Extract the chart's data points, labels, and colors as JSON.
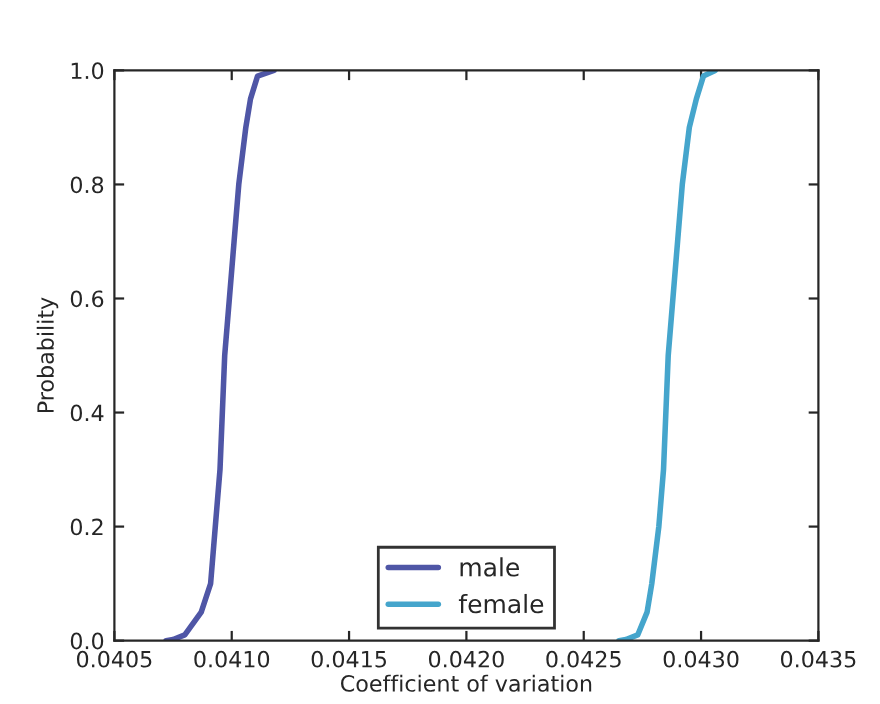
{
  "chart_data": {
    "type": "line",
    "xlabel": "Coefficient of variation",
    "ylabel": "Probability",
    "series": [
      {
        "name": "male",
        "color": "#4f56a6",
        "x": [
          0.04072,
          0.04075,
          0.0408,
          0.04087,
          0.04091,
          0.04093,
          0.04095,
          0.04097,
          0.04101,
          0.04103,
          0.04106,
          0.04108,
          0.04111,
          0.04118
        ],
        "values": [
          0,
          0.002,
          0.01,
          0.05,
          0.1,
          0.2,
          0.3,
          0.5,
          0.7,
          0.8,
          0.9,
          0.95,
          0.99,
          1.0
        ]
      },
      {
        "name": "female",
        "color": "#45a5cc",
        "x": [
          0.04265,
          0.04268,
          0.04273,
          0.04277,
          0.04279,
          0.04282,
          0.04284,
          0.04286,
          0.0429,
          0.04292,
          0.04295,
          0.04298,
          0.04301,
          0.04306
        ],
        "values": [
          0,
          0.002,
          0.01,
          0.05,
          0.1,
          0.2,
          0.3,
          0.5,
          0.7,
          0.8,
          0.9,
          0.95,
          0.99,
          1.0
        ]
      }
    ],
    "xlim": [
      0.0405,
      0.0435
    ],
    "xticks": [
      {
        "value": 0.0405,
        "label": "0.0405"
      },
      {
        "value": 0.041,
        "label": "0.0410"
      },
      {
        "value": 0.0415,
        "label": "0.0415"
      },
      {
        "value": 0.042,
        "label": "0.0420"
      },
      {
        "value": 0.0425,
        "label": "0.0425"
      },
      {
        "value": 0.043,
        "label": "0.0430"
      },
      {
        "value": 0.0435,
        "label": "0.0435"
      }
    ],
    "ylim": [
      0,
      1
    ],
    "yticks": [
      {
        "value": 0,
        "label": "0.0"
      },
      {
        "value": 0.2,
        "label": "0.2"
      },
      {
        "value": 0.4,
        "label": "0.4"
      },
      {
        "value": 0.6,
        "label": "0.6"
      },
      {
        "value": 0.8,
        "label": "0.8"
      },
      {
        "value": 1,
        "label": "1.0"
      }
    ],
    "grid": false,
    "legend": "bottom"
  }
}
